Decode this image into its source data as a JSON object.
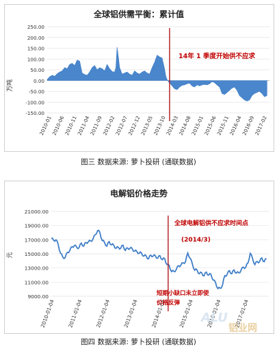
{
  "charts": [
    {
      "title": "全球铝供需平衡：累计值",
      "caption": "图三 数据来源: 萝卜投研 (通联数据)",
      "ylabel": "万吨",
      "annotation": "14年 1 季度开始供不应求",
      "y_ticks": [
        "250.00",
        "200.00",
        "150.00",
        "100.00",
        "50.00",
        "0.00",
        "-50.00",
        "-100.00",
        "-150.00"
      ],
      "x_ticks": [
        "2010-01",
        "2010-06",
        "2010-11",
        "2011-04",
        "2011-09",
        "2012-02",
        "2012-07",
        "2012-12",
        "2013-05",
        "2013-10",
        "2014-03",
        "2014-08",
        "2015-01",
        "2015-06",
        "2015-11",
        "2016-04",
        "2016-09",
        "2017-02"
      ]
    },
    {
      "title": "电解铝价格走势",
      "caption": "图四 数据来源: 萝卜投研 (通联数据)",
      "ylabel": "元",
      "annotation_top": "全球电解铝供不应求时间点",
      "annotation_sub": "(2014/3)",
      "annotation_bottom1": "短期小缺口未立即使",
      "annotation_bottom2": "价格反弹",
      "y_ticks": [
        "21000.00",
        "19000.00",
        "17000.00",
        "15000.00",
        "13000.00",
        "11000.00",
        "9000.00"
      ],
      "x_ticks": [
        "2010-01-04",
        "2011-01-04",
        "2012-01-04",
        "2013-01-04",
        "2014-01-04",
        "2015-01-04",
        "2016-01-04",
        "2017-01-04"
      ]
    }
  ],
  "chart_data": [
    {
      "type": "area",
      "title": "全球铝供需平衡：累计值",
      "ylabel": "万吨",
      "ylim": [
        -150,
        250
      ],
      "x_range": [
        "2010-01",
        "2017-04"
      ],
      "color": "#3f7ec8",
      "series": [
        {
          "values": [
            [
              0,
              5
            ],
            [
              2,
              18
            ],
            [
              4,
              25
            ],
            [
              6,
              20
            ],
            [
              8,
              32
            ],
            [
              10,
              40
            ],
            [
              12,
              45
            ],
            [
              14,
              60
            ],
            [
              16,
              55
            ],
            [
              18,
              75
            ],
            [
              20,
              80
            ],
            [
              22,
              70
            ],
            [
              24,
              95
            ],
            [
              26,
              90
            ],
            [
              28,
              35
            ],
            [
              30,
              28
            ],
            [
              32,
              25
            ],
            [
              34,
              40
            ],
            [
              36,
              60
            ],
            [
              38,
              70
            ],
            [
              40,
              50
            ],
            [
              42,
              60
            ],
            [
              44,
              55
            ],
            [
              46,
              45
            ],
            [
              48,
              75
            ],
            [
              50,
              55
            ],
            [
              52,
              42
            ],
            [
              54,
              40
            ],
            [
              55,
              60
            ],
            [
              56,
              155
            ],
            [
              57,
              110
            ],
            [
              58,
              60
            ],
            [
              60,
              30
            ],
            [
              62,
              35
            ],
            [
              64,
              40
            ],
            [
              66,
              30
            ],
            [
              68,
              25
            ],
            [
              70,
              45
            ],
            [
              72,
              35
            ],
            [
              74,
              30
            ],
            [
              76,
              40
            ],
            [
              78,
              45
            ],
            [
              80,
              35
            ],
            [
              82,
              30
            ],
            [
              84,
              60
            ],
            [
              86,
              85
            ],
            [
              88,
              118
            ],
            [
              90,
              110
            ],
            [
              92,
              105
            ],
            [
              94,
              55
            ],
            [
              95,
              20
            ],
            [
              96,
              5
            ],
            [
              97,
              -5
            ],
            [
              98,
              -10
            ],
            [
              100,
              -25
            ],
            [
              102,
              -38
            ],
            [
              104,
              -42
            ],
            [
              106,
              -30
            ],
            [
              108,
              -22
            ],
            [
              110,
              -20
            ],
            [
              112,
              -15
            ],
            [
              114,
              -12
            ],
            [
              116,
              -25
            ],
            [
              118,
              -30
            ],
            [
              120,
              -20
            ],
            [
              122,
              -25
            ],
            [
              124,
              -20
            ],
            [
              126,
              -18
            ],
            [
              128,
              -20
            ],
            [
              130,
              -15
            ],
            [
              132,
              -5
            ],
            [
              134,
              -10
            ],
            [
              136,
              -20
            ],
            [
              138,
              -30
            ],
            [
              140,
              -60
            ],
            [
              142,
              -65
            ],
            [
              144,
              -55
            ],
            [
              146,
              -45
            ],
            [
              148,
              -35
            ],
            [
              150,
              -30
            ],
            [
              152,
              -45
            ],
            [
              154,
              -70
            ],
            [
              156,
              -80
            ],
            [
              158,
              -90
            ],
            [
              160,
              -95
            ],
            [
              162,
              -90
            ],
            [
              164,
              -70
            ],
            [
              166,
              -60
            ],
            [
              168,
              -55
            ],
            [
              170,
              -50
            ],
            [
              172,
              -60
            ],
            [
              174,
              -75
            ],
            [
              176,
              -70
            ]
          ]
        }
      ],
      "vline_month": 98
    },
    {
      "type": "line",
      "title": "电解铝价格走势",
      "ylabel": "元",
      "ylim": [
        9000,
        21000
      ],
      "x_range": [
        "2010-01-04",
        "2017-06-30"
      ],
      "color": "#3f7ec8",
      "series": [
        {
          "values": [
            [
              0,
              17300
            ],
            [
              1,
              16800
            ],
            [
              2,
              17100
            ],
            [
              3,
              16200
            ],
            [
              4,
              15200
            ],
            [
              5,
              14400
            ],
            [
              6,
              14600
            ],
            [
              7,
              15100
            ],
            [
              8,
              15600
            ],
            [
              9,
              15900
            ],
            [
              10,
              16300
            ],
            [
              11,
              15800
            ],
            [
              12,
              16000
            ],
            [
              13,
              16400
            ],
            [
              14,
              16200
            ],
            [
              15,
              16500
            ],
            [
              16,
              16800
            ],
            [
              17,
              16700
            ],
            [
              18,
              17200
            ],
            [
              19,
              17600
            ],
            [
              20,
              18400
            ],
            [
              21,
              17900
            ],
            [
              22,
              17000
            ],
            [
              23,
              16500
            ],
            [
              24,
              16200
            ],
            [
              25,
              16600
            ],
            [
              26,
              16400
            ],
            [
              27,
              16100
            ],
            [
              28,
              15900
            ],
            [
              29,
              15800
            ],
            [
              30,
              15900
            ],
            [
              31,
              16100
            ],
            [
              32,
              15600
            ],
            [
              33,
              15700
            ],
            [
              34,
              15900
            ],
            [
              35,
              15600
            ],
            [
              36,
              15500
            ],
            [
              37,
              15200
            ],
            [
              38,
              15200
            ],
            [
              39,
              15000
            ],
            [
              40,
              14800
            ],
            [
              41,
              14600
            ],
            [
              42,
              14400
            ],
            [
              43,
              14700
            ],
            [
              44,
              14800
            ],
            [
              45,
              14600
            ],
            [
              46,
              14500
            ],
            [
              47,
              14600
            ],
            [
              48,
              14300
            ],
            [
              49,
              14200
            ],
            [
              50,
              13600
            ],
            [
              51,
              13200
            ],
            [
              52,
              12600
            ],
            [
              53,
              12400
            ],
            [
              54,
              12900
            ],
            [
              55,
              13200
            ],
            [
              56,
              13500
            ],
            [
              57,
              13600
            ],
            [
              58,
              14000
            ],
            [
              59,
              15000
            ],
            [
              60,
              14500
            ],
            [
              61,
              13400
            ],
            [
              62,
              12800
            ],
            [
              63,
              12600
            ],
            [
              64,
              12300
            ],
            [
              65,
              12200
            ],
            [
              66,
              12000
            ],
            [
              67,
              12300
            ],
            [
              68,
              12100
            ],
            [
              69,
              12000
            ],
            [
              70,
              11400
            ],
            [
              71,
              10800
            ],
            [
              72,
              10200
            ],
            [
              73,
              10000
            ],
            [
              74,
              10700
            ],
            [
              75,
              11800
            ],
            [
              76,
              12200
            ],
            [
              77,
              12500
            ],
            [
              78,
              12300
            ],
            [
              79,
              12600
            ],
            [
              80,
              12400
            ],
            [
              81,
              12200
            ],
            [
              82,
              12800
            ],
            [
              83,
              13000
            ],
            [
              84,
              13200
            ],
            [
              85,
              13600
            ],
            [
              86,
              15200
            ],
            [
              87,
              14200
            ],
            [
              88,
              13600
            ],
            [
              89,
              13800
            ],
            [
              90,
              14000
            ],
            [
              91,
              14300
            ],
            [
              92,
              14000
            ],
            [
              93,
              14200
            ]
          ]
        }
      ],
      "vline_month": 50.5
    }
  ]
}
